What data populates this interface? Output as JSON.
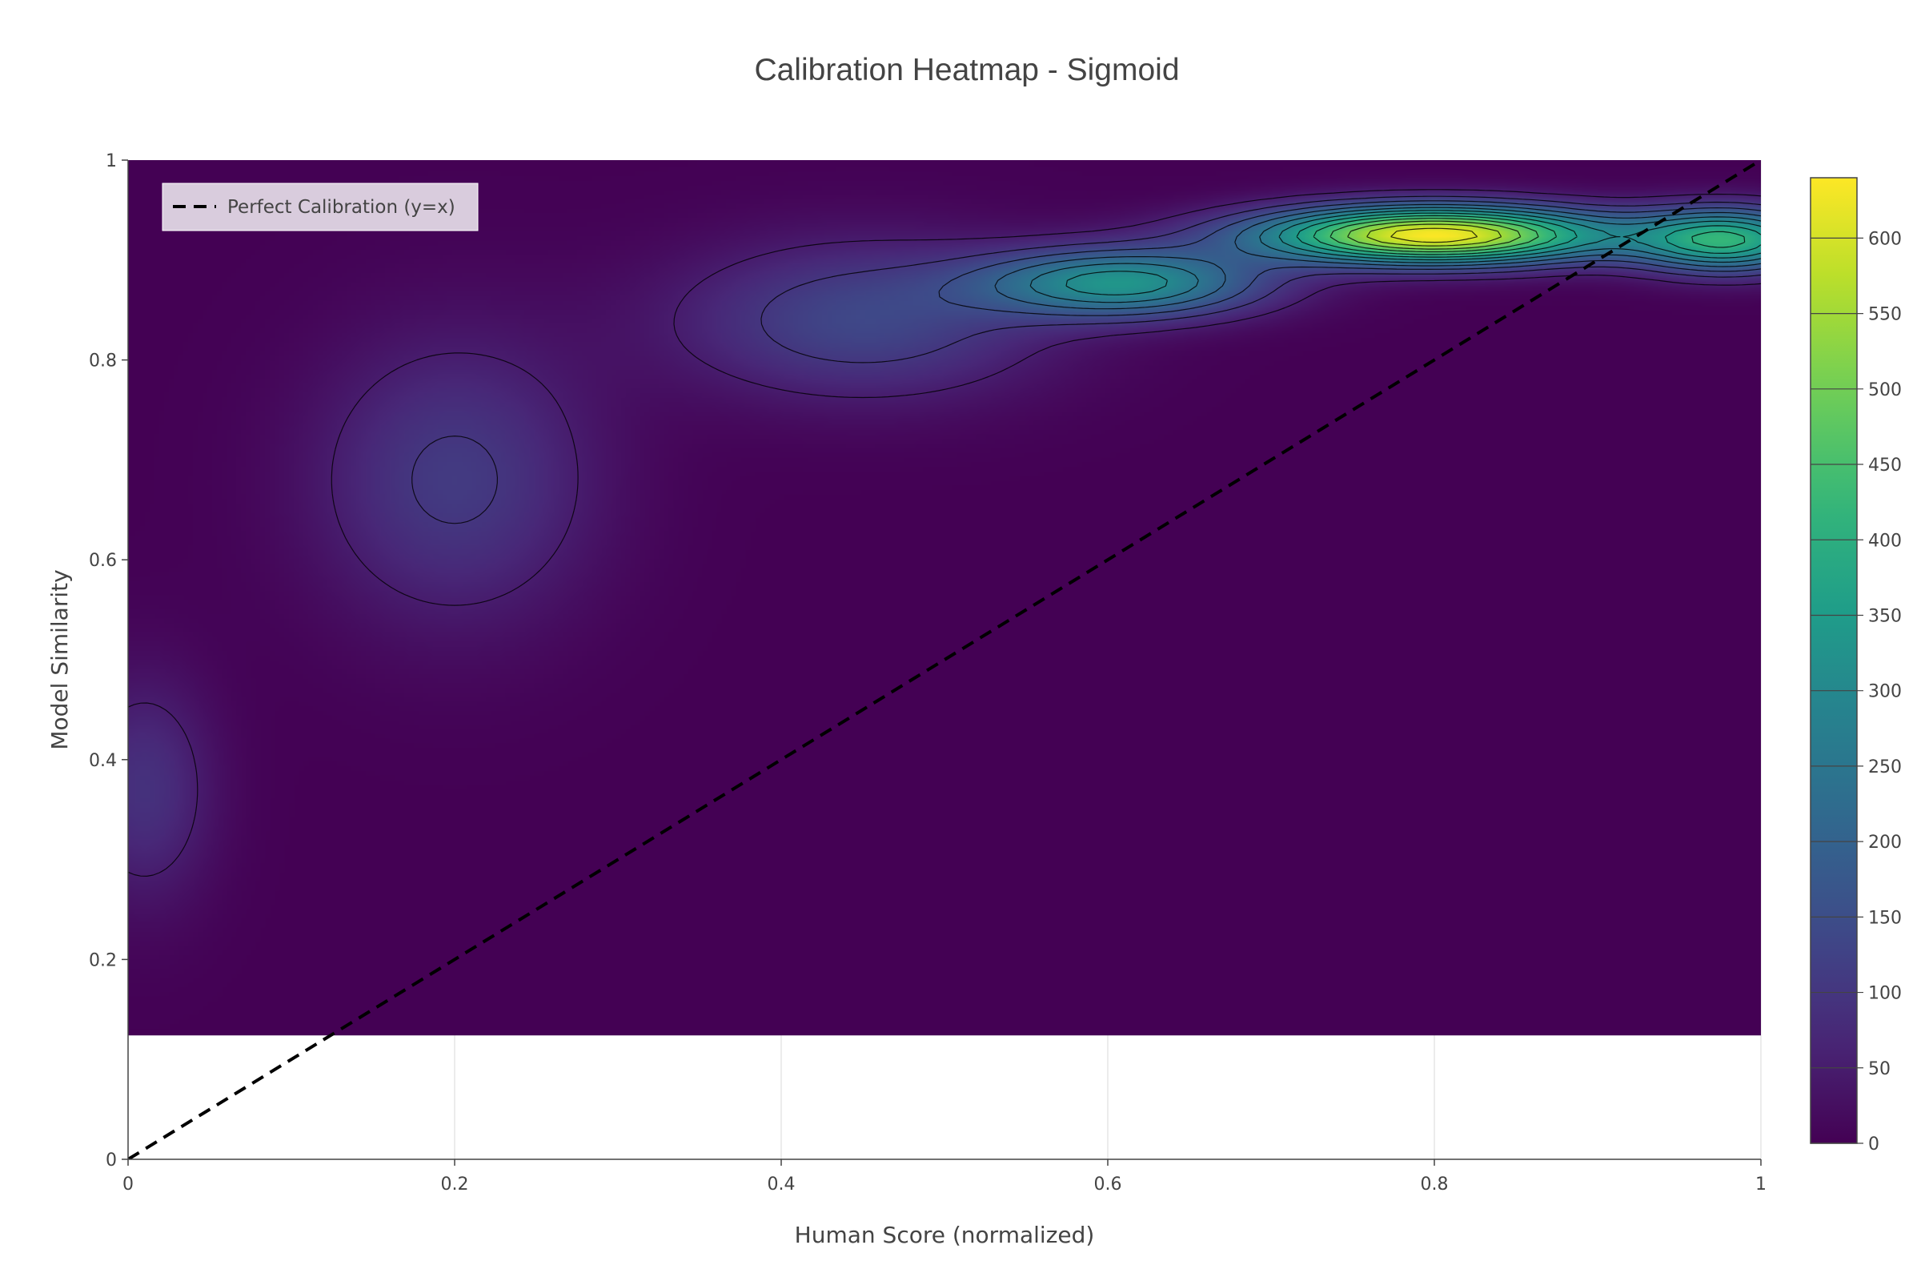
{
  "chart_data": {
    "type": "heatmap",
    "title": "Calibration Heatmap - Sigmoid",
    "xlabel": "Human Score (normalized)",
    "ylabel": "Model Similarity",
    "xlim": [
      0,
      1
    ],
    "ylim": [
      0,
      1
    ],
    "heatmap_y_range": [
      0.124,
      1
    ],
    "x_ticks": [
      0,
      0.2,
      0.4,
      0.6,
      0.8,
      1
    ],
    "x_tick_labels": [
      "0",
      "0.2",
      "0.4",
      "0.6",
      "0.8",
      "1"
    ],
    "y_ticks": [
      0,
      0.2,
      0.4,
      0.6,
      0.8,
      1
    ],
    "y_tick_labels": [
      "0",
      "0.2",
      "0.4",
      "0.6",
      "0.8",
      "1"
    ],
    "colorscale": "viridis",
    "colorbar": {
      "range": [
        0,
        640
      ],
      "ticks": [
        0,
        50,
        100,
        150,
        200,
        250,
        300,
        350,
        400,
        450,
        500,
        550,
        600
      ],
      "tick_labels": [
        "0",
        "50",
        "100",
        "150",
        "200",
        "250",
        "300",
        "350",
        "400",
        "450",
        "500",
        "550",
        "600"
      ]
    },
    "contour_levels": [
      50,
      100,
      150,
      200,
      250,
      300,
      350,
      400,
      450,
      500,
      550,
      600
    ],
    "density_peaks": [
      {
        "x": 0.8,
        "y": 0.925,
        "value": 640
      },
      {
        "x": 0.98,
        "y": 0.92,
        "value": 390
      },
      {
        "x": 0.61,
        "y": 0.877,
        "value": 320
      },
      {
        "x": 0.45,
        "y": 0.84,
        "value": 135
      },
      {
        "x": 0.2,
        "y": 0.68,
        "value": 110
      },
      {
        "x": 0.01,
        "y": 0.37,
        "value": 90
      }
    ],
    "series": [
      {
        "name": "Perfect Calibration (y=x)",
        "type": "line",
        "style": "dashed",
        "color": "#000000",
        "x": [
          0,
          1
        ],
        "y": [
          0,
          1
        ]
      }
    ],
    "legend": {
      "placement": "top-left",
      "entries": [
        "Perfect Calibration (y=x)"
      ]
    },
    "grid": true
  }
}
